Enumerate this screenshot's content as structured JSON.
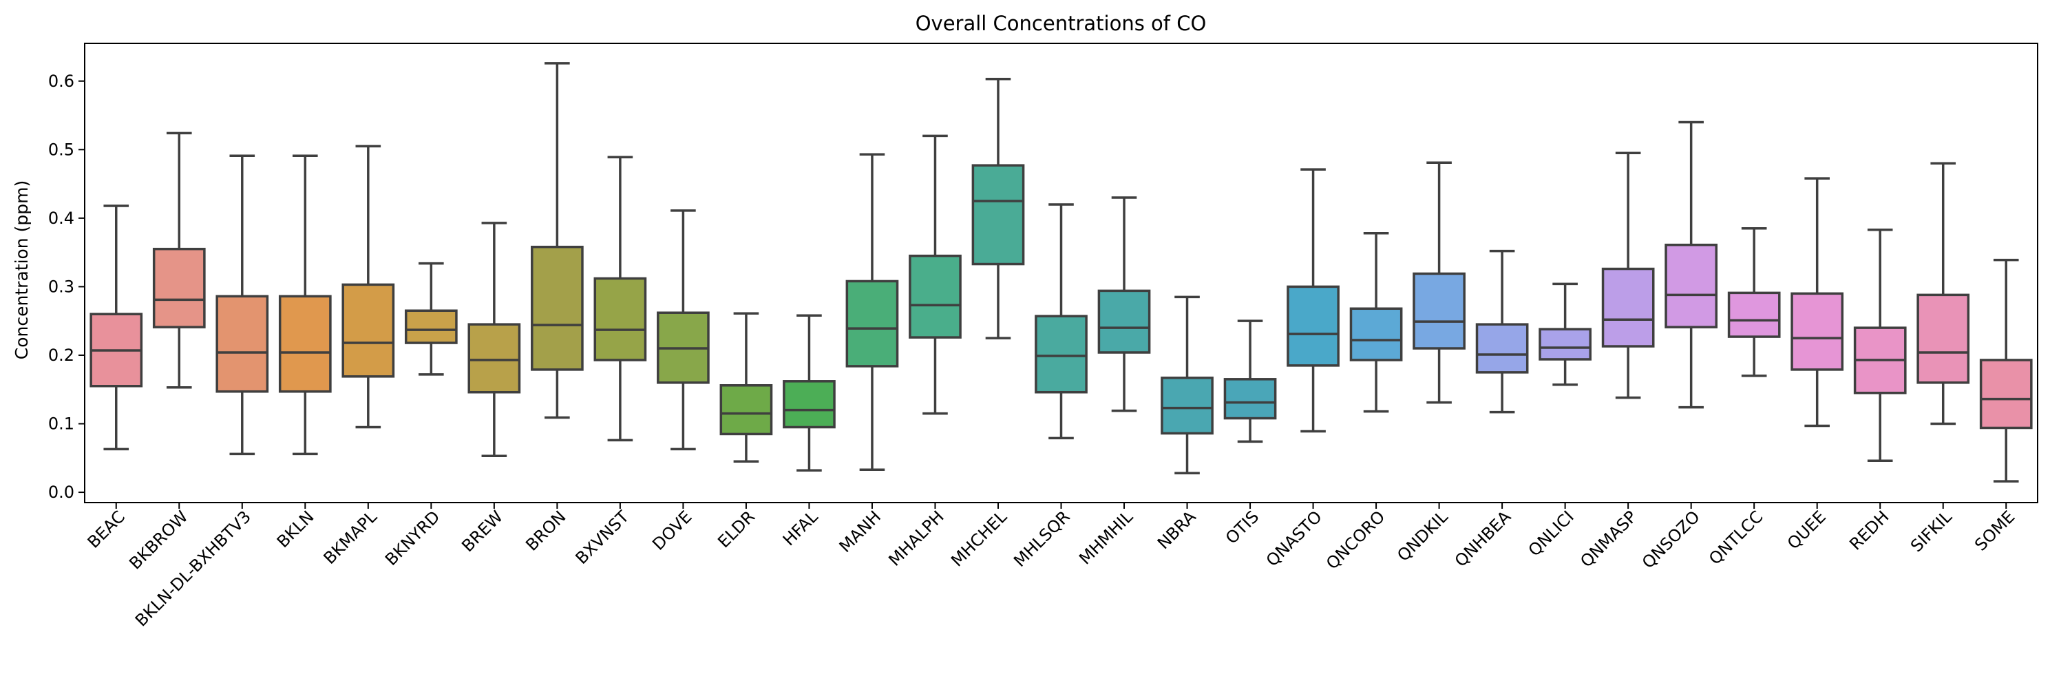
{
  "chart_data": {
    "type": "box",
    "title": "Overall Concentrations of CO",
    "xlabel": "",
    "ylabel": "Concentration (ppm)",
    "ylim": [
      -0.015,
      0.655
    ],
    "yticks": [
      0.0,
      0.1,
      0.2,
      0.3,
      0.4,
      0.5,
      0.6
    ],
    "ytick_labels": [
      "0.0",
      "0.1",
      "0.2",
      "0.3",
      "0.4",
      "0.5",
      "0.6"
    ],
    "grid": false,
    "legend": "none",
    "categories": [
      "BEAC",
      "BKBROW",
      "BKLN-DL-BXHBTV3",
      "BKLN",
      "BKMAPL",
      "BKNYRD",
      "BREW",
      "BRON",
      "BXVNST",
      "DOVE",
      "ELDR",
      "HFAL",
      "MANH",
      "MHALPH",
      "MHCHEL",
      "MHLSQR",
      "MHMHIL",
      "NBRA",
      "OTIS",
      "QNASTO",
      "QNCORO",
      "QNDKIL",
      "QNHBEA",
      "QNLICI",
      "QNMASP",
      "QNSOZO",
      "QNTLCC",
      "QUEE",
      "REDH",
      "SIFKIL",
      "SOME"
    ],
    "boxes": [
      {
        "whislo": 0.063,
        "q1": 0.155,
        "med": 0.207,
        "q3": 0.26,
        "whishi": 0.418,
        "color": "#e8919b"
      },
      {
        "whislo": 0.153,
        "q1": 0.241,
        "med": 0.281,
        "q3": 0.355,
        "whishi": 0.524,
        "color": "#e59488"
      },
      {
        "whislo": 0.056,
        "q1": 0.147,
        "med": 0.204,
        "q3": 0.286,
        "whishi": 0.491,
        "color": "#e3946f"
      },
      {
        "whislo": 0.056,
        "q1": 0.147,
        "med": 0.204,
        "q3": 0.286,
        "whishi": 0.491,
        "color": "#e0984e"
      },
      {
        "whislo": 0.095,
        "q1": 0.169,
        "med": 0.218,
        "q3": 0.303,
        "whishi": 0.505,
        "color": "#d39c48"
      },
      {
        "whislo": 0.172,
        "q1": 0.218,
        "med": 0.237,
        "q3": 0.265,
        "whishi": 0.334,
        "color": "#c9a24a"
      },
      {
        "whislo": 0.053,
        "q1": 0.146,
        "med": 0.193,
        "q3": 0.245,
        "whishi": 0.393,
        "color": "#b8a14a"
      },
      {
        "whislo": 0.109,
        "q1": 0.179,
        "med": 0.244,
        "q3": 0.358,
        "whishi": 0.626,
        "color": "#a3a04a"
      },
      {
        "whislo": 0.076,
        "q1": 0.193,
        "med": 0.237,
        "q3": 0.312,
        "whishi": 0.489,
        "color": "#96a448"
      },
      {
        "whislo": 0.063,
        "q1": 0.16,
        "med": 0.21,
        "q3": 0.262,
        "whishi": 0.411,
        "color": "#88a74a"
      },
      {
        "whislo": 0.045,
        "q1": 0.085,
        "med": 0.115,
        "q3": 0.156,
        "whishi": 0.261,
        "color": "#6eaa48"
      },
      {
        "whislo": 0.032,
        "q1": 0.095,
        "med": 0.12,
        "q3": 0.162,
        "whishi": 0.258,
        "color": "#4cae56"
      },
      {
        "whislo": 0.033,
        "q1": 0.184,
        "med": 0.239,
        "q3": 0.308,
        "whishi": 0.493,
        "color": "#4aae78"
      },
      {
        "whislo": 0.115,
        "q1": 0.226,
        "med": 0.273,
        "q3": 0.345,
        "whishi": 0.52,
        "color": "#4aae8b"
      },
      {
        "whislo": 0.225,
        "q1": 0.333,
        "med": 0.425,
        "q3": 0.477,
        "whishi": 0.603,
        "color": "#4aab96"
      },
      {
        "whislo": 0.079,
        "q1": 0.146,
        "med": 0.199,
        "q3": 0.257,
        "whishi": 0.42,
        "color": "#4aaa9f"
      },
      {
        "whislo": 0.119,
        "q1": 0.204,
        "med": 0.24,
        "q3": 0.294,
        "whishi": 0.43,
        "color": "#4aa9a8"
      },
      {
        "whislo": 0.028,
        "q1": 0.086,
        "med": 0.123,
        "q3": 0.167,
        "whishi": 0.285,
        "color": "#4aa7b1"
      },
      {
        "whislo": 0.074,
        "q1": 0.108,
        "med": 0.131,
        "q3": 0.165,
        "whishi": 0.25,
        "color": "#4aa6b8"
      },
      {
        "whislo": 0.089,
        "q1": 0.185,
        "med": 0.231,
        "q3": 0.3,
        "whishi": 0.471,
        "color": "#4aa8c9"
      },
      {
        "whislo": 0.118,
        "q1": 0.193,
        "med": 0.222,
        "q3": 0.268,
        "whishi": 0.378,
        "color": "#5ca9d6"
      },
      {
        "whislo": 0.131,
        "q1": 0.21,
        "med": 0.249,
        "q3": 0.319,
        "whishi": 0.481,
        "color": "#78a8e2"
      },
      {
        "whislo": 0.117,
        "q1": 0.175,
        "med": 0.201,
        "q3": 0.245,
        "whishi": 0.352,
        "color": "#96a6e8"
      },
      {
        "whislo": 0.157,
        "q1": 0.194,
        "med": 0.211,
        "q3": 0.238,
        "whishi": 0.304,
        "color": "#a9a2ea"
      },
      {
        "whislo": 0.138,
        "q1": 0.213,
        "med": 0.252,
        "q3": 0.326,
        "whishi": 0.495,
        "color": "#bc9ee8"
      },
      {
        "whislo": 0.124,
        "q1": 0.241,
        "med": 0.288,
        "q3": 0.361,
        "whishi": 0.54,
        "color": "#d19ae4"
      },
      {
        "whislo": 0.17,
        "q1": 0.227,
        "med": 0.251,
        "q3": 0.291,
        "whishi": 0.385,
        "color": "#df97de"
      },
      {
        "whislo": 0.097,
        "q1": 0.179,
        "med": 0.225,
        "q3": 0.29,
        "whishi": 0.458,
        "color": "#e695d5"
      },
      {
        "whislo": 0.046,
        "q1": 0.145,
        "med": 0.193,
        "q3": 0.24,
        "whishi": 0.383,
        "color": "#e994c7"
      },
      {
        "whislo": 0.1,
        "q1": 0.16,
        "med": 0.204,
        "q3": 0.288,
        "whishi": 0.48,
        "color": "#e993b7"
      },
      {
        "whislo": 0.016,
        "q1": 0.094,
        "med": 0.136,
        "q3": 0.193,
        "whishi": 0.339,
        "color": "#e991a8"
      }
    ]
  }
}
